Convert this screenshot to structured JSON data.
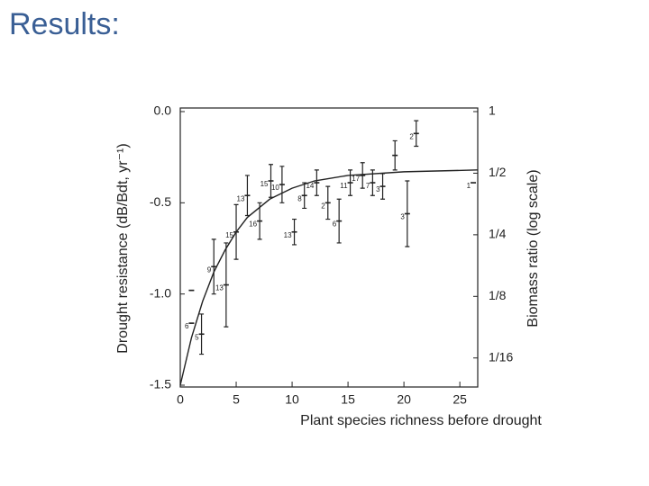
{
  "slide_title": "Results:",
  "chart_data": {
    "type": "errorbar",
    "xlabel": "Plant species richness before drought",
    "ylabel": "Drought resistance (dB/Bdt, yr⁻¹)",
    "y2label": "Biomass ratio (log scale)",
    "xlim": [
      0,
      26.6
    ],
    "xticks": [
      0,
      5,
      10,
      15,
      20,
      25
    ],
    "ylim": [
      -1.5,
      0
    ],
    "yticks": [
      {
        "value": 0,
        "label": "0.0"
      },
      {
        "value": -0.5,
        "label": "-0.5"
      },
      {
        "value": -1,
        "label": "-1.0"
      },
      {
        "value": -1.5,
        "label": "-1.5"
      }
    ],
    "y2lim": [
      0.046,
      1
    ],
    "y2scale": "log",
    "y2ticks": [
      1,
      {
        "value": 0.5,
        "label": "1/2"
      },
      {
        "value": 0.25,
        "label": "1/4"
      },
      {
        "value": 0.125,
        "label": "1/8"
      },
      {
        "value": 0.0625,
        "label": "1/16"
      }
    ],
    "color": "#222222",
    "points": {
      "x": [
        1.0,
        1.0,
        1.9,
        3.0,
        4.1,
        5.0,
        6.0,
        7.1,
        8.1,
        9.1,
        10.2,
        11.1,
        12.2,
        13.2,
        14.2,
        15.2,
        16.3,
        17.2,
        18.1,
        19.2,
        20.3,
        21.1,
        26.2
      ],
      "values": [
        -0.98,
        -1.16,
        -1.22,
        -0.85,
        -0.95,
        -0.66,
        -0.46,
        -0.6,
        -0.38,
        -0.4,
        -0.66,
        -0.46,
        -0.39,
        -0.5,
        -0.6,
        -0.39,
        -0.35,
        -0.39,
        -0.41,
        -0.24,
        -0.56,
        -0.12,
        -0.39
      ],
      "errors": [
        0,
        0,
        0.11,
        0.15,
        0.23,
        0.15,
        0.11,
        0.1,
        0.09,
        0.1,
        0.07,
        0.07,
        0.07,
        0.09,
        0.12,
        0.07,
        0.07,
        0.07,
        0.07,
        0.08,
        0.18,
        0.07,
        0
      ],
      "labels": [
        null,
        "6",
        "5",
        "9",
        "13",
        "15",
        "13",
        "16",
        "15",
        "10",
        "13",
        "8",
        "14",
        "2",
        "6",
        "11",
        "17",
        "7",
        "3",
        null,
        "3",
        "2",
        "1"
      ]
    },
    "curve": {
      "x": [
        0,
        1,
        2,
        3,
        4,
        5,
        6,
        8,
        10,
        12,
        15,
        20,
        26.6
      ],
      "values": [
        -1.5,
        -1.24,
        -1.04,
        -0.88,
        -0.76,
        -0.66,
        -0.58,
        -0.48,
        -0.42,
        -0.38,
        -0.35,
        -0.33,
        -0.32
      ]
    }
  }
}
